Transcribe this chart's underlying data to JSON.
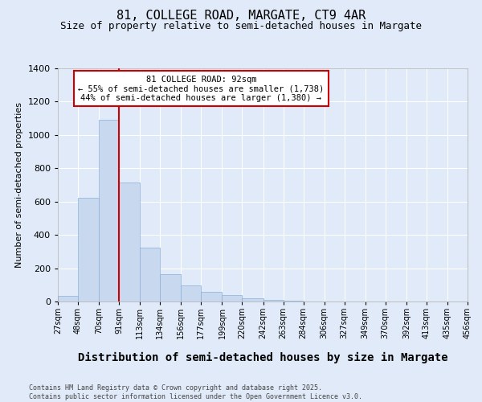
{
  "title": "81, COLLEGE ROAD, MARGATE, CT9 4AR",
  "subtitle": "Size of property relative to semi-detached houses in Margate",
  "xlabel": "Distribution of semi-detached houses by size in Margate",
  "ylabel": "Number of semi-detached properties",
  "annotation_line1": "81 COLLEGE ROAD: 92sqm",
  "annotation_line2": "← 55% of semi-detached houses are smaller (1,738)",
  "annotation_line3": "44% of semi-detached houses are larger (1,380) →",
  "bar_color": "#c8d8ee",
  "bar_edge_color": "#8ab0d8",
  "vline_color": "#cc0000",
  "vline_x": 91,
  "background_color": "#e0eaf8",
  "plot_bg_color": "#e0eaf8",
  "footer_text": "Contains HM Land Registry data © Crown copyright and database right 2025.\nContains public sector information licensed under the Open Government Licence v3.0.",
  "bin_edges": [
    27,
    48,
    70,
    91,
    113,
    134,
    156,
    177,
    199,
    220,
    242,
    263,
    284,
    306,
    327,
    349,
    370,
    392,
    413,
    435,
    456
  ],
  "counts": [
    35,
    625,
    1090,
    715,
    325,
    165,
    95,
    60,
    40,
    20,
    10,
    5,
    0,
    0,
    0,
    0,
    0,
    0,
    0,
    0
  ],
  "ylim": [
    0,
    1400
  ],
  "yticks": [
    0,
    200,
    400,
    600,
    800,
    1000,
    1200,
    1400
  ],
  "title_fontsize": 11,
  "subtitle_fontsize": 9,
  "xlabel_fontsize": 10,
  "ylabel_fontsize": 8,
  "tick_fontsize": 7
}
